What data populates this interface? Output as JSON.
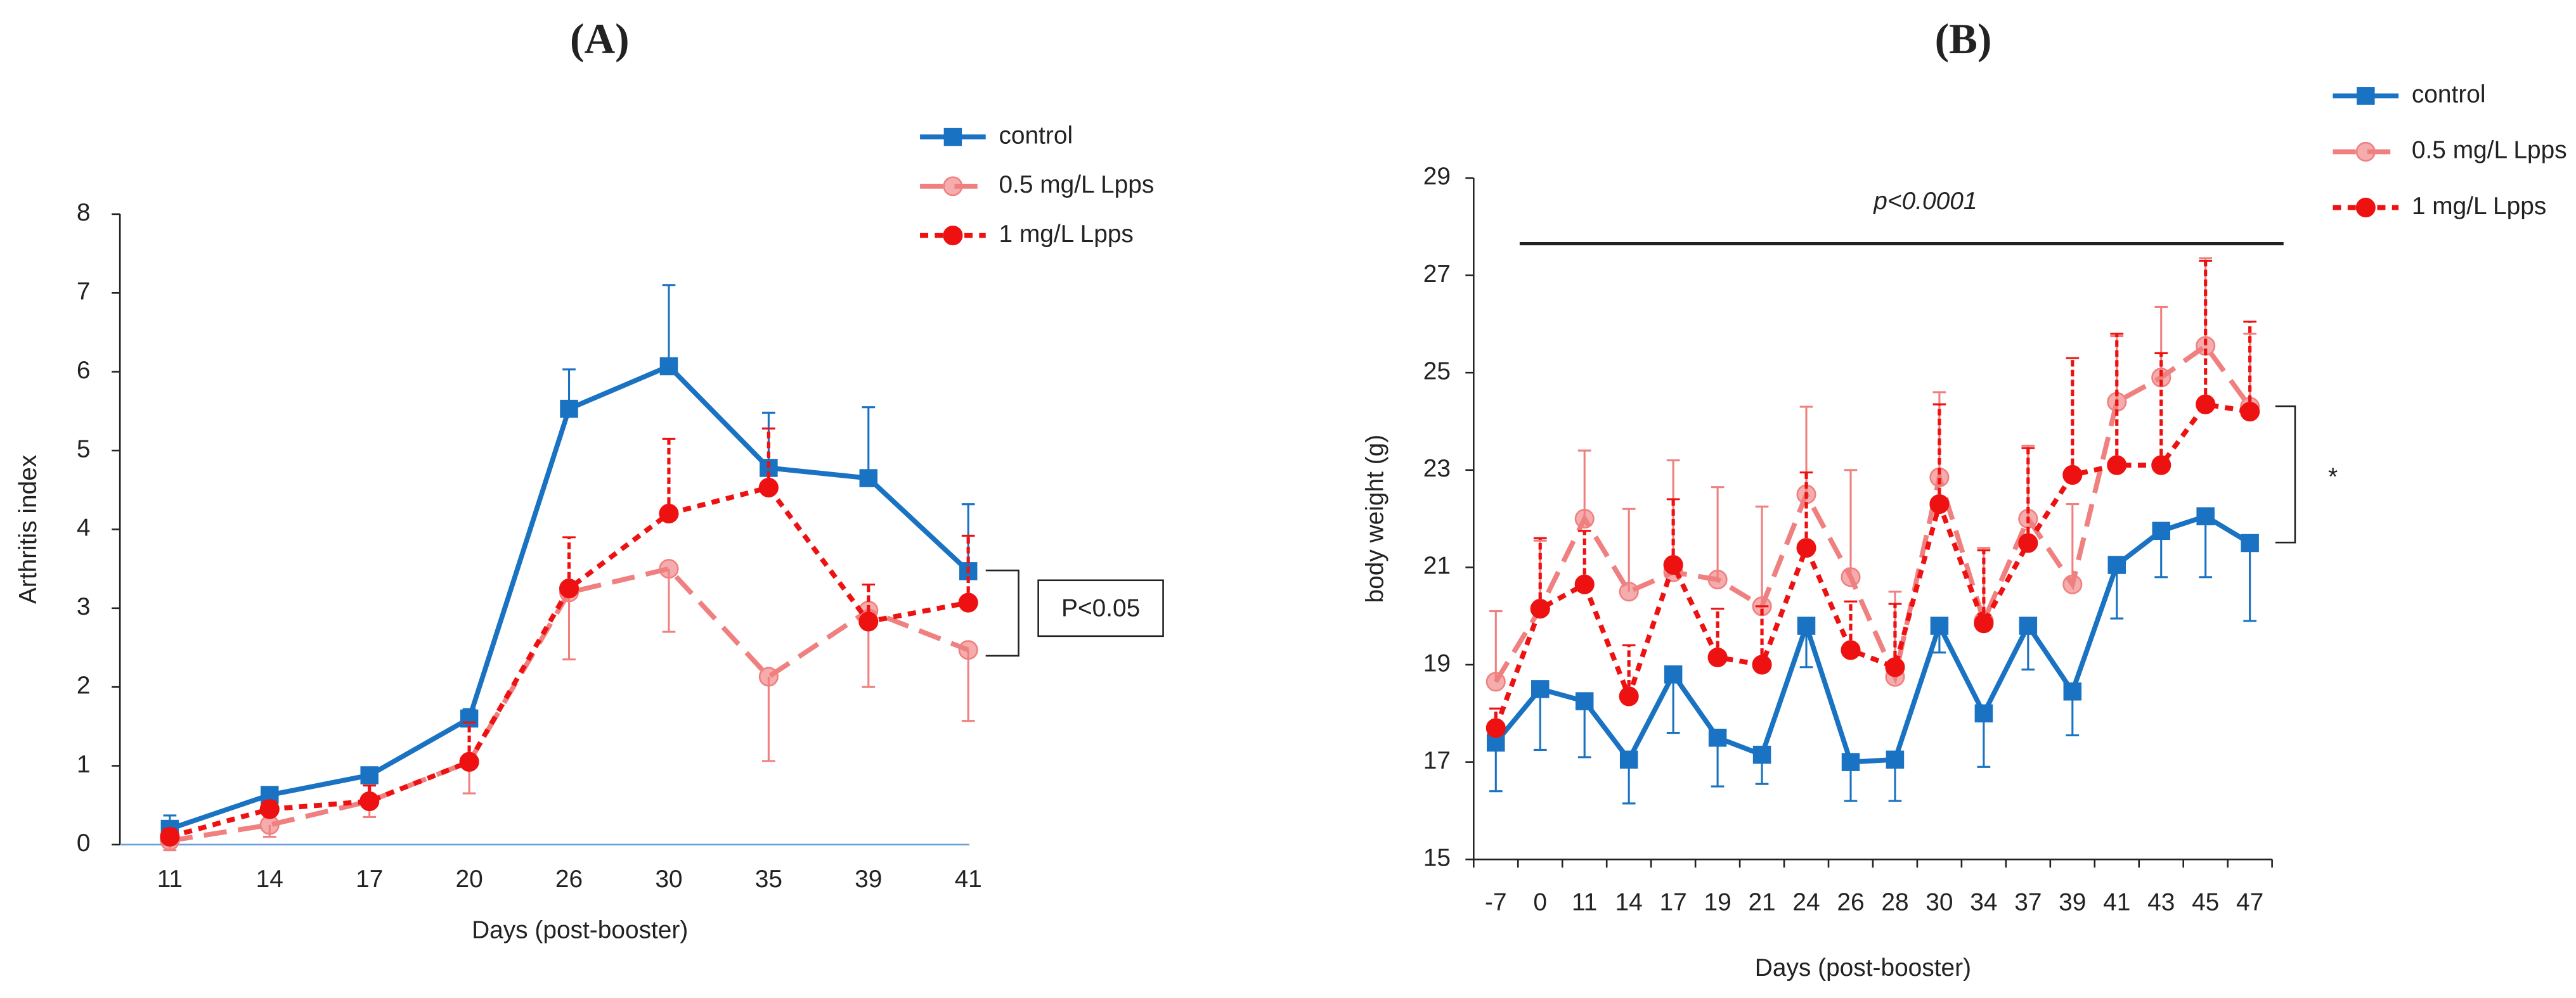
{
  "chart_data": [
    {
      "type": "line",
      "title": "(A)",
      "x_label": "Days (post-booster)",
      "y_label": "Arthritis index",
      "categories": [
        "11",
        "14",
        "17",
        "20",
        "26",
        "30",
        "35",
        "39",
        "41"
      ],
      "ylim": [
        0,
        8
      ],
      "yticks": [
        0,
        1,
        2,
        3,
        4,
        5,
        6,
        7,
        8
      ],
      "series": [
        {
          "name": "control",
          "color": "#1a72c2",
          "dash": "solid",
          "marker": "square",
          "error_direction": "up",
          "values": [
            0.2,
            0.63,
            0.88,
            1.6,
            5.53,
            6.07,
            4.78,
            4.65,
            3.47
          ],
          "errors": [
            0.17,
            0.1,
            0.1,
            0.12,
            0.5,
            1.03,
            0.7,
            0.9,
            0.85
          ]
        },
        {
          "name": "0.5 mg/L Lpps",
          "color": "#f08080",
          "dash": "long",
          "marker": "circle",
          "error_direction": "down",
          "values": [
            0.05,
            0.25,
            0.55,
            1.05,
            3.2,
            3.5,
            2.13,
            2.97,
            2.47
          ],
          "errors": [
            0.12,
            0.15,
            0.2,
            0.4,
            0.85,
            0.8,
            1.07,
            0.97,
            0.9
          ]
        },
        {
          "name": "1 mg/L Lpps",
          "color": "#ee1111",
          "dash": "short",
          "marker": "circle",
          "error_direction": "up",
          "values": [
            0.1,
            0.45,
            0.55,
            1.05,
            3.25,
            4.2,
            4.53,
            2.83,
            3.07
          ],
          "errors": [
            0.1,
            0.1,
            0.2,
            0.5,
            0.65,
            0.95,
            0.75,
            0.47,
            0.85
          ]
        }
      ],
      "annotation": "P<0.05"
    },
    {
      "type": "line",
      "title": "(B)",
      "x_label": "Days (post-booster)",
      "y_label": "body weight (g)",
      "categories": [
        "-7",
        "0",
        "11",
        "14",
        "17",
        "19",
        "21",
        "24",
        "26",
        "28",
        "30",
        "34",
        "37",
        "39",
        "41",
        "43",
        "45",
        "47"
      ],
      "ylim": [
        15,
        29
      ],
      "yticks": [
        15,
        17,
        19,
        21,
        23,
        25,
        27,
        29
      ],
      "series": [
        {
          "name": "control",
          "color": "#1a72c2",
          "dash": "solid",
          "marker": "square",
          "error_direction": "down",
          "values": [
            17.4,
            18.5,
            18.25,
            17.05,
            18.8,
            17.5,
            17.15,
            19.8,
            17.0,
            17.05,
            19.8,
            18.0,
            19.8,
            18.45,
            21.05,
            21.75,
            22.05,
            21.5
          ],
          "errors": [
            1.0,
            1.25,
            1.15,
            0.9,
            1.2,
            1.0,
            0.6,
            0.85,
            0.8,
            0.85,
            0.55,
            1.1,
            0.9,
            0.9,
            1.1,
            0.95,
            1.25,
            1.6
          ]
        },
        {
          "name": "0.5 mg/L  Lpps",
          "color": "#f08080",
          "dash": "long",
          "marker": "circle",
          "error_direction": "up",
          "values": [
            18.65,
            20.15,
            22.0,
            20.5,
            20.9,
            20.75,
            20.2,
            22.5,
            20.8,
            18.75,
            22.85,
            19.9,
            22.0,
            20.65,
            24.4,
            24.9,
            25.55,
            24.3
          ],
          "errors": [
            1.45,
            1.4,
            1.4,
            1.7,
            2.3,
            1.9,
            2.05,
            1.8,
            2.2,
            1.75,
            1.75,
            1.5,
            1.5,
            1.65,
            1.35,
            1.45,
            1.8,
            1.5
          ]
        },
        {
          "name": "1 mg/L Lpps",
          "color": "#ee1111",
          "dash": "short",
          "marker": "circle",
          "error_direction": "up",
          "values": [
            17.7,
            20.15,
            20.65,
            18.35,
            21.05,
            19.15,
            19.0,
            21.4,
            19.3,
            18.95,
            22.3,
            19.85,
            21.5,
            22.9,
            23.1,
            23.1,
            24.35,
            24.2
          ],
          "errors": [
            0.4,
            1.45,
            1.1,
            1.05,
            1.35,
            1.0,
            1.2,
            1.55,
            1.0,
            1.3,
            2.05,
            1.5,
            1.95,
            2.4,
            2.7,
            2.3,
            2.95,
            1.85
          ]
        }
      ],
      "annotation": "p<0.0001",
      "annotation2": "*"
    }
  ]
}
